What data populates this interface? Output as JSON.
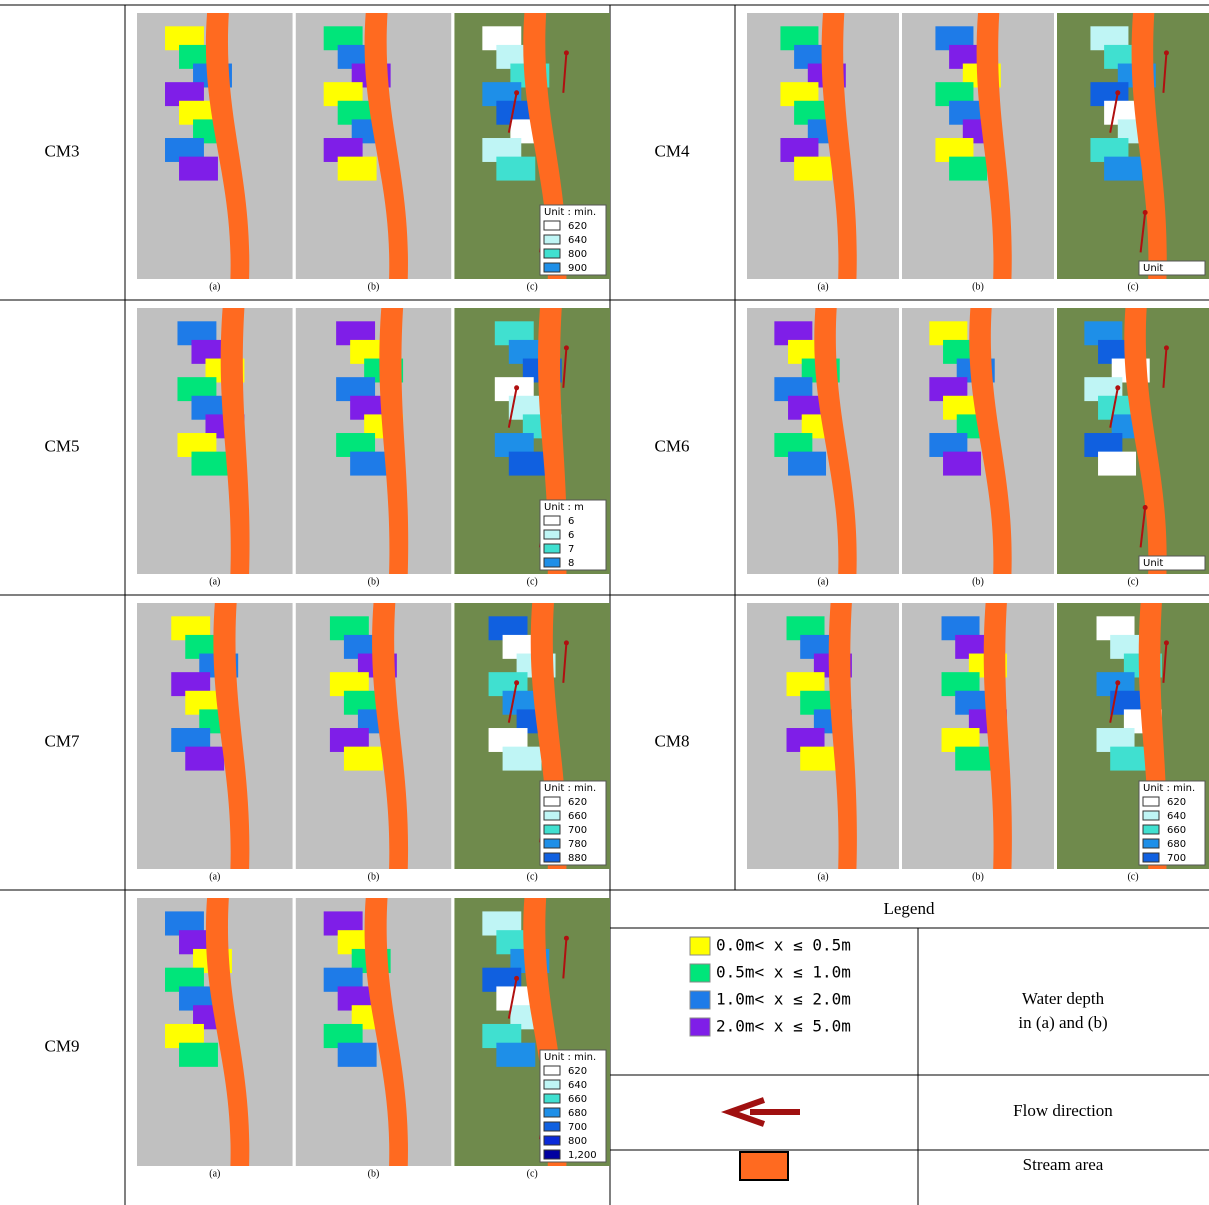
{
  "rows": [
    {
      "label": "CM3",
      "unit_title": "Unit : min.",
      "unit_values": [
        "620",
        "640",
        "800",
        "900"
      ]
    },
    {
      "label": "CM4",
      "unit_title": "Unit"
    },
    {
      "label": "CM5",
      "unit_title": "Unit : m",
      "unit_values": [
        "6",
        "6",
        "7",
        "8"
      ]
    },
    {
      "label": "CM6",
      "unit_title": "Unit"
    },
    {
      "label": "CM7",
      "unit_title": "Unit : min.",
      "unit_values": [
        "620",
        "660",
        "700",
        "780",
        "880"
      ]
    },
    {
      "label": "CM8",
      "unit_title": "Unit : min.",
      "unit_values": [
        "620",
        "640",
        "660",
        "680",
        "700"
      ]
    },
    {
      "label": "CM9",
      "unit_title": "Unit : min.",
      "unit_values": [
        "620",
        "640",
        "660",
        "680",
        "700",
        "800",
        "1,200"
      ]
    }
  ],
  "panel_labels": [
    "(a)",
    "(b)",
    "(c)"
  ],
  "legend": {
    "title": "Legend",
    "depth_items": [
      "0.0m< x ≤ 0.5m",
      "0.5m< x ≤ 1.0m",
      "1.0m< x ≤ 2.0m",
      "2.0m< x ≤ 5.0m"
    ],
    "depth_caption": [
      "Water depth",
      "in (a) and (b)"
    ],
    "flow_caption": "Flow direction",
    "stream_caption": "Stream area"
  }
}
